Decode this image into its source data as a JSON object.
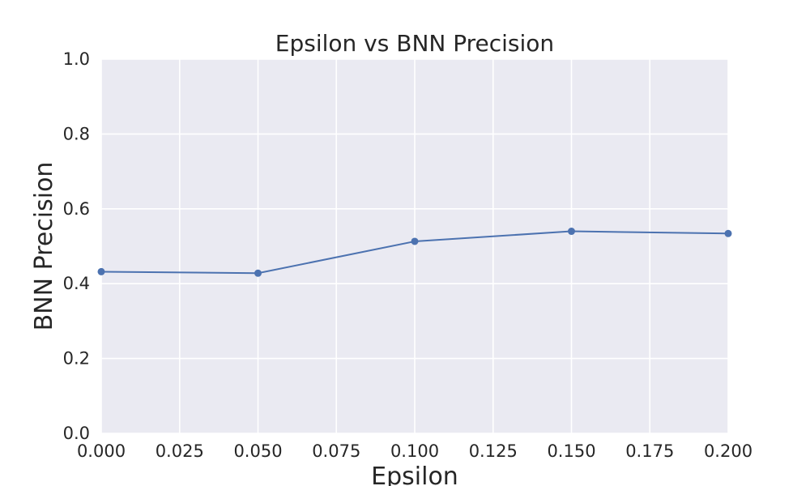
{
  "chart_data": {
    "type": "line",
    "title": "Epsilon vs BNN Precision",
    "xlabel": "Epsilon",
    "ylabel": "BNN Precision",
    "xlim": [
      0.0,
      0.2
    ],
    "ylim": [
      0.0,
      1.0
    ],
    "x_ticks": [
      "0.000",
      "0.025",
      "0.050",
      "0.075",
      "0.100",
      "0.125",
      "0.150",
      "0.175",
      "0.200"
    ],
    "y_ticks": [
      "0.0",
      "0.2",
      "0.4",
      "0.6",
      "0.8",
      "1.0"
    ],
    "grid": true,
    "series": [
      {
        "x": [
          0.0,
          0.05,
          0.1,
          0.15,
          0.2
        ],
        "y": [
          0.432,
          0.428,
          0.513,
          0.54,
          0.534
        ],
        "color": "#4c72b0",
        "marker": "circle"
      }
    ],
    "background_color": "#eaeaf2"
  }
}
